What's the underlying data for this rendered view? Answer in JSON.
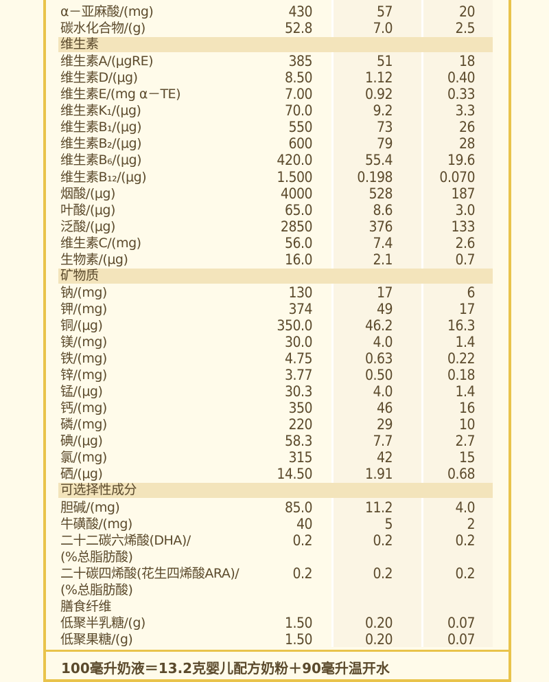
{
  "table": {
    "rows": [
      [
        "α－亚麻酸/(mg)",
        "430",
        "57",
        "20"
      ],
      [
        "碳水化合物/(g)",
        "52.8",
        "7.0",
        "2.5"
      ],
      [
        "维生素"
      ],
      [
        "维生素A/(μgRE)",
        "385",
        "51",
        "18"
      ],
      [
        "维生素D/(μg)",
        "8.50",
        "1.12",
        "0.40"
      ],
      [
        "维生素E/(mg α－TE)",
        "7.00",
        "0.92",
        "0.33"
      ],
      [
        "维生素K₁/(μg)",
        "70.0",
        "9.2",
        "3.3"
      ],
      [
        "维生素B₁/(μg)",
        "550",
        "73",
        "26"
      ],
      [
        "维生素B₂/(μg)",
        "600",
        "79",
        "28"
      ],
      [
        "维生素B₆/(μg)",
        "420.0",
        "55.4",
        "19.6"
      ],
      [
        "维生素B₁₂/(μg)",
        "1.500",
        "0.198",
        "0.070"
      ],
      [
        "烟酸/(μg)",
        "4000",
        "528",
        "187"
      ],
      [
        "叶酸/(μg)",
        "65.0",
        "8.6",
        "3.0"
      ],
      [
        "泛酸/(μg)",
        "2850",
        "376",
        "133"
      ],
      [
        "维生素C/(mg)",
        "56.0",
        "7.4",
        "2.6"
      ],
      [
        "生物素/(μg)",
        "16.0",
        "2.1",
        "0.7"
      ],
      [
        "矿物质"
      ],
      [
        "钠/(mg)",
        "130",
        "17",
        "6"
      ],
      [
        "钾/(mg)",
        "374",
        "49",
        "17"
      ],
      [
        "铜/(μg)",
        "350.0",
        "46.2",
        "16.3"
      ],
      [
        "镁/(mg)",
        "30.0",
        "4.0",
        "1.4"
      ],
      [
        "铁/(mg)",
        "4.75",
        "0.63",
        "0.22"
      ],
      [
        "锌/(mg)",
        "3.77",
        "0.50",
        "0.18"
      ],
      [
        "锰/(μg)",
        "30.3",
        "4.0",
        "1.4"
      ],
      [
        "钙/(mg)",
        "350",
        "46",
        "16"
      ],
      [
        "磷/(mg)",
        "220",
        "29",
        "10"
      ],
      [
        "碘/(μg)",
        "58.3",
        "7.7",
        "2.7"
      ],
      [
        "氯/(mg)",
        "315",
        "42",
        "15"
      ],
      [
        "硒/(μg)",
        "14.50",
        "1.91",
        "0.68"
      ],
      [
        "可选择性成分"
      ],
      [
        "胆碱/(mg)",
        "85.0",
        "11.2",
        "4.0"
      ],
      [
        "牛磺酸/(mg)",
        "40",
        "5",
        "2"
      ],
      [
        "二十二碳六烯酸(DHA)/\n(%总脂肪酸)",
        "0.2",
        "0.2",
        "0.2"
      ],
      [
        "二十碳四烯酸(花生四烯酸ARA)/\n(%总脂肪酸)",
        "0.2",
        "0.2",
        "0.2"
      ],
      [
        "膳食纤维",
        "",
        "",
        ""
      ],
      [
        "低聚半乳糖/(g)",
        "1.50",
        "0.20",
        "0.07"
      ],
      [
        "低聚果糖/(g)",
        "1.50",
        "0.20",
        "0.07"
      ]
    ]
  },
  "footer": "100毫升奶液＝13.2克婴儿配方奶粉＋90毫升温开水"
}
